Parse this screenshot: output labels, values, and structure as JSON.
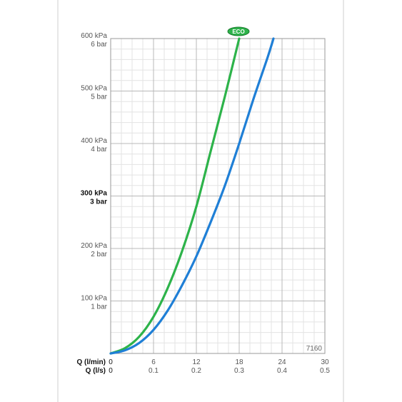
{
  "chart_data": {
    "type": "line",
    "model_code": "7160",
    "x_axis_lmin": {
      "label": "Q (l/min)",
      "ticks": [
        "0",
        "6",
        "12",
        "18",
        "24",
        "30"
      ],
      "range": [
        0,
        30
      ]
    },
    "x_axis_ls": {
      "label": "Q (l/s)",
      "ticks": [
        "0",
        "0.1",
        "0.2",
        "0.3",
        "0.4",
        "0.5"
      ]
    },
    "y_axis": {
      "range": [
        0,
        600
      ],
      "ticks": [
        {
          "value": 100,
          "kpa": "100 kPa",
          "bar": "1 bar",
          "bold": false
        },
        {
          "value": 200,
          "kpa": "200 kPa",
          "bar": "2 bar",
          "bold": false
        },
        {
          "value": 300,
          "kpa": "300 kPa",
          "bar": "3 bar",
          "bold": true
        },
        {
          "value": 400,
          "kpa": "400 kPa",
          "bar": "4 bar",
          "bold": false
        },
        {
          "value": 500,
          "kpa": "500 kPa",
          "bar": "5 bar",
          "bold": false
        },
        {
          "value": 600,
          "kpa": "600 kPa",
          "bar": "6 bar",
          "bold": false
        }
      ]
    },
    "grid": true,
    "series": [
      {
        "name": "ECO",
        "color": "#2db34a",
        "x": [
          0,
          2,
          4,
          6,
          8,
          10,
          12,
          14,
          16,
          18
        ],
        "y": [
          0,
          10,
          32,
          70,
          125,
          195,
          280,
          385,
          490,
          600
        ]
      },
      {
        "name": "",
        "color": "#1f7fd6",
        "x": [
          0,
          2,
          4,
          6,
          8,
          10,
          12,
          14,
          16,
          18,
          20,
          22,
          22.8
        ],
        "y": [
          0,
          6,
          20,
          45,
          82,
          130,
          185,
          250,
          320,
          400,
          485,
          565,
          600
        ]
      }
    ]
  }
}
